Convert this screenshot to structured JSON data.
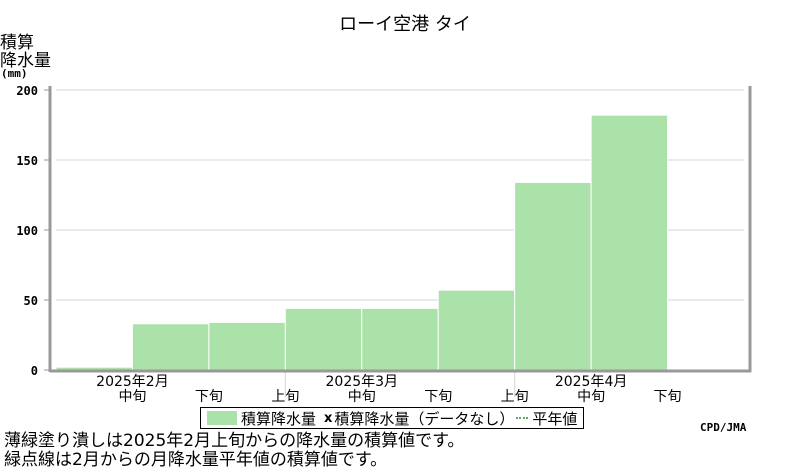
{
  "colors": {
    "fill": "#abe2aa",
    "fill_edge": "#ffffff",
    "grid": "#d6d6d6",
    "axis": "#999999",
    "frame": "#000000"
  },
  "chart_data": {
    "type": "area",
    "title": "ローイ空港 タイ",
    "ylabel": [
      "積算",
      "降水量"
    ],
    "yunit": "(mm)",
    "ylim": [
      0,
      200
    ],
    "yticks": [
      0,
      50,
      100,
      150,
      200
    ],
    "grid": true,
    "x": [
      "2025年2月上旬",
      "2025年2月中旬",
      "2025年2月下旬",
      "2025年3月上旬",
      "2025年3月中旬",
      "2025年3月下旬",
      "2025年4月上旬",
      "2025年4月中旬",
      "2025年4月下旬"
    ],
    "series": [
      {
        "name": "積算降水量",
        "values": [
          2,
          33,
          34,
          44,
          44,
          57,
          134,
          182,
          null
        ]
      }
    ],
    "xtick_labels": [
      {
        "label": "中旬",
        "month_label": "2025年2月"
      },
      {
        "label": "下旬",
        "month_label": ""
      },
      {
        "label": "上旬",
        "month_label": ""
      },
      {
        "label": "中旬",
        "month_label": "2025年3月"
      },
      {
        "label": "下旬",
        "month_label": ""
      },
      {
        "label": "上旬",
        "month_label": ""
      },
      {
        "label": "中旬",
        "month_label": "2025年4月"
      },
      {
        "label": "下旬",
        "month_label": ""
      }
    ],
    "legend_placement": "bottom-center"
  },
  "legend": {
    "fill_label": "積算降水量",
    "marker": "x",
    "nodata_label": "積算降水量（データなし）",
    "normal_label": "平年値"
  },
  "notes": [
    "薄緑塗り潰しは2025年2月上旬からの降水量の積算値です。",
    "緑点線は2月からの月降水量平年値の積算値です。"
  ],
  "credit": "CPD/JMA"
}
